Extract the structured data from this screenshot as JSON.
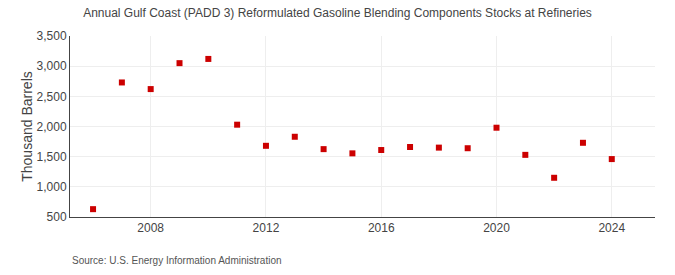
{
  "chart_data": {
    "type": "scatter",
    "title": "Annual Gulf Coast (PADD 3) Reformulated Gasoline Blending Components Stocks at Refineries",
    "ylabel": "Thousand Barrels",
    "annotations": [
      "Source: U.S. Energy Information Administration"
    ],
    "x": [
      2006,
      2007,
      2008,
      2009,
      2010,
      2011,
      2012,
      2013,
      2014,
      2015,
      2016,
      2017,
      2018,
      2019,
      2020,
      2021,
      2022,
      2023,
      2024
    ],
    "values": [
      630,
      2730,
      2620,
      3050,
      3120,
      2030,
      1680,
      1830,
      1625,
      1555,
      1610,
      1660,
      1650,
      1640,
      1980,
      1530,
      1150,
      1730,
      1460
    ],
    "color": "#CC0000",
    "marker": "square",
    "xlim": [
      2005.2,
      2025.5
    ],
    "xticks": [
      2008,
      2012,
      2016,
      2020,
      2024
    ],
    "ylim": [
      500,
      3500
    ],
    "yticks": [
      500,
      {
        "value": 1000,
        "label": "1,000"
      },
      {
        "value": 1500,
        "label": "1,500"
      },
      {
        "value": 2000,
        "label": "2,000"
      },
      {
        "value": 2500,
        "label": "2,500"
      },
      {
        "value": 3000,
        "label": "3,000"
      },
      {
        "value": 3500,
        "label": "3,500"
      }
    ],
    "grid": true
  }
}
